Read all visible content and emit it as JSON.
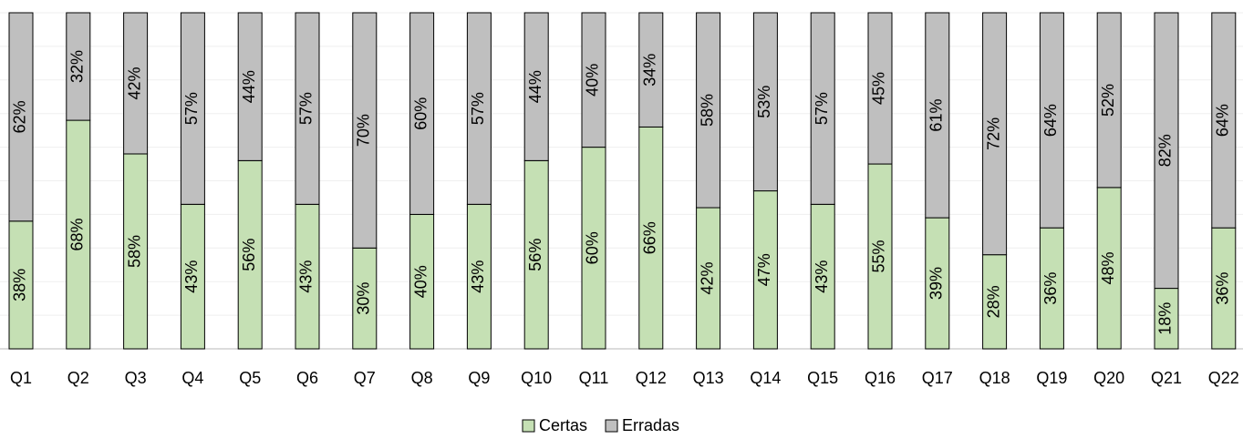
{
  "chart_data": {
    "type": "stacked_bar",
    "categories": [
      "Q1",
      "Q2",
      "Q3",
      "Q4",
      "Q5",
      "Q6",
      "Q7",
      "Q8",
      "Q9",
      "Q10",
      "Q11",
      "Q12",
      "Q13",
      "Q14",
      "Q15",
      "Q16",
      "Q17",
      "Q18",
      "Q19",
      "Q20",
      "Q21",
      "Q22"
    ],
    "series": [
      {
        "name": "Certas",
        "color": "#c5e0b4",
        "values": [
          38,
          68,
          58,
          43,
          56,
          43,
          30,
          40,
          43,
          56,
          60,
          66,
          42,
          47,
          43,
          55,
          39,
          28,
          36,
          48,
          18,
          36
        ],
        "value_labels": [
          "38%",
          "68%",
          "58%",
          "43%",
          "56%",
          "43%",
          "30%",
          "40%",
          "43%",
          "56%",
          "60%",
          "66%",
          "42%",
          "47%",
          "43%",
          "55%",
          "39%",
          "28%",
          "36%",
          "48%",
          "18%",
          "36%"
        ]
      },
      {
        "name": "Erradas",
        "color": "#bfbfbf",
        "values": [
          62,
          32,
          42,
          57,
          44,
          57,
          70,
          60,
          57,
          44,
          40,
          34,
          58,
          53,
          57,
          45,
          61,
          72,
          64,
          52,
          82,
          64
        ],
        "value_labels": [
          "62%",
          "32%",
          "42%",
          "57%",
          "44%",
          "57%",
          "70%",
          "60%",
          "57%",
          "44%",
          "40%",
          "34%",
          "58%",
          "53%",
          "57%",
          "45%",
          "61%",
          "72%",
          "64%",
          "52%",
          "82%",
          "64%"
        ]
      }
    ],
    "ylim": [
      0,
      100
    ],
    "yticks": [
      0,
      10,
      20,
      30,
      40,
      50,
      60,
      70,
      80,
      90,
      100
    ],
    "grid": true,
    "legend": "bottom"
  }
}
